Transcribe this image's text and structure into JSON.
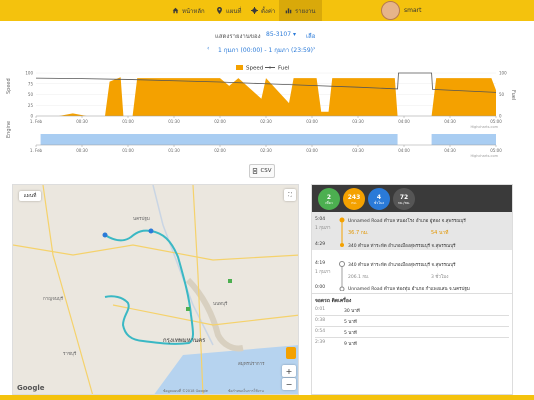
{
  "nav": {
    "items": [
      {
        "label": "หน้าหลัก",
        "icon": "home-icon"
      },
      {
        "label": "แผนที่",
        "icon": "map-marker-icon"
      },
      {
        "label": "ตั้งค่า",
        "icon": "gear-icon"
      },
      {
        "label": "รายงาน",
        "icon": "bar-chart-icon"
      }
    ],
    "active": "รายงาน",
    "user_name": "smart"
  },
  "controls": {
    "vehicle_label": "แสดงรายงานของ",
    "vehicle_value": "85-3107",
    "vehicle_action": "เลือ",
    "date_range": "1 กุมภา (00:00) - 1 กุมภา (23:59)",
    "csv_label": "CSV"
  },
  "chart_data": [
    {
      "type": "area",
      "series": [
        {
          "name": "Speed",
          "color": "#f4a100"
        },
        {
          "name": "Fuel",
          "color": "#555555"
        }
      ],
      "ylabel_left": "Speed",
      "ylabel_right": "Fuel",
      "yticks_left": [
        0,
        25,
        50,
        75,
        100
      ],
      "yticks_right": [
        0,
        50,
        100
      ],
      "xticks": [
        "1. Feb",
        "00:30",
        "01:00",
        "01:30",
        "02:00",
        "02:30",
        "03:00",
        "03:30",
        "04:00",
        "04:30",
        "05:00"
      ],
      "legend_position": "top-center",
      "credit": "Highcharts.com",
      "speed_profile": [
        [
          0.0,
          0
        ],
        [
          0.25,
          0
        ],
        [
          0.4,
          6
        ],
        [
          0.55,
          0
        ],
        [
          0.75,
          0
        ],
        [
          0.8,
          80
        ],
        [
          0.92,
          90
        ],
        [
          0.95,
          0
        ],
        [
          1.05,
          0
        ],
        [
          1.1,
          88
        ],
        [
          2.0,
          88
        ],
        [
          2.1,
          70
        ],
        [
          2.2,
          88
        ],
        [
          2.45,
          40
        ],
        [
          2.5,
          88
        ],
        [
          2.75,
          30
        ],
        [
          2.8,
          88
        ],
        [
          3.05,
          88
        ],
        [
          3.1,
          10
        ],
        [
          3.18,
          10
        ],
        [
          3.22,
          88
        ],
        [
          3.9,
          88
        ],
        [
          3.93,
          0
        ],
        [
          4.3,
          0
        ],
        [
          4.35,
          88
        ],
        [
          4.95,
          88
        ],
        [
          5.0,
          60
        ]
      ],
      "fuel_profile": [
        [
          0.0,
          88
        ],
        [
          0.5,
          87
        ],
        [
          1.0,
          85
        ],
        [
          1.5,
          82
        ],
        [
          2.0,
          79
        ],
        [
          2.5,
          75
        ],
        [
          3.0,
          71
        ],
        [
          3.5,
          67
        ],
        [
          3.93,
          63
        ],
        [
          3.94,
          100
        ],
        [
          4.3,
          100
        ],
        [
          4.31,
          62
        ],
        [
          5.0,
          55
        ]
      ]
    },
    {
      "type": "area",
      "series": [
        {
          "name": "Engine",
          "color": "#a9cdf2"
        }
      ],
      "ylabel_left": "Engine",
      "xticks": [
        "1. Feb",
        "00:30",
        "01:00",
        "01:30",
        "02:00",
        "02:30",
        "03:00",
        "03:30",
        "04:00",
        "04:30",
        "05:00"
      ],
      "credit": "Highcharts.com",
      "on_intervals": [
        [
          0.05,
          3.93
        ],
        [
          4.3,
          5.0
        ]
      ]
    }
  ],
  "map": {
    "type_label": "แผนที่",
    "city_label": "กรุงเทพมหานคร",
    "place_labels": [
      "นครปฐม",
      "กาญจนบุรี",
      "ราชบุรี",
      "นนทบุรี",
      "สมุทรปราการ"
    ],
    "attribution": "ข้อมูลแผนที่ ©2018 Google",
    "terms": "ข้อกำหนดในการใช้งาน",
    "google_logo": "Google",
    "zoom_in": "+",
    "zoom_out": "−"
  },
  "summary": {
    "stats": [
      {
        "value": "2",
        "unit": "เที่ยว",
        "color": "#4caf50"
      },
      {
        "value": "243",
        "unit": "กม.",
        "color": "#f4a100"
      },
      {
        "value": "4",
        "unit": "ชั่วโมง",
        "color": "#2a7ad8"
      },
      {
        "value": "72",
        "unit": "กม./ชม.",
        "color": "#555555"
      }
    ],
    "trips": [
      {
        "time_start": "5:04",
        "date": "1 กุมภา",
        "from": "Unnamed Road ตำบล หนองโรง อำเภอ อู่ทอง จ.สุพรรณบุรี",
        "distance": "36.7 กม.",
        "duration": "54 นาที",
        "time_end": "4:29",
        "to": "340 ตำบล ท่าระหัด อำเภอเมืองสุพรรณบุรี จ.สุพรรณบุรี"
      },
      {
        "time_start": "4:19",
        "date": "1 กุมภา",
        "from": "340 ตำบล ท่าระหัด อำเภอเมืองสุพรรณบุรี จ.สุพรรณบุรี",
        "distance": "206.1 กม.",
        "duration": "3 ชั่วโมง",
        "time_end": "0:00",
        "to": "Unnamed Road ตำบล ท่องทุ่ม อำเภอ กำแพงแสน จ.นครปฐม"
      }
    ],
    "stops_title": "จอดรถ ติดเครื่อง",
    "stops": [
      {
        "time": "0:01",
        "duration": "30 นาที"
      },
      {
        "time": "0:38",
        "duration": "5 นาที"
      },
      {
        "time": "0:54",
        "duration": "5 นาที"
      },
      {
        "time": "2:39",
        "duration": "9 นาที"
      }
    ]
  }
}
